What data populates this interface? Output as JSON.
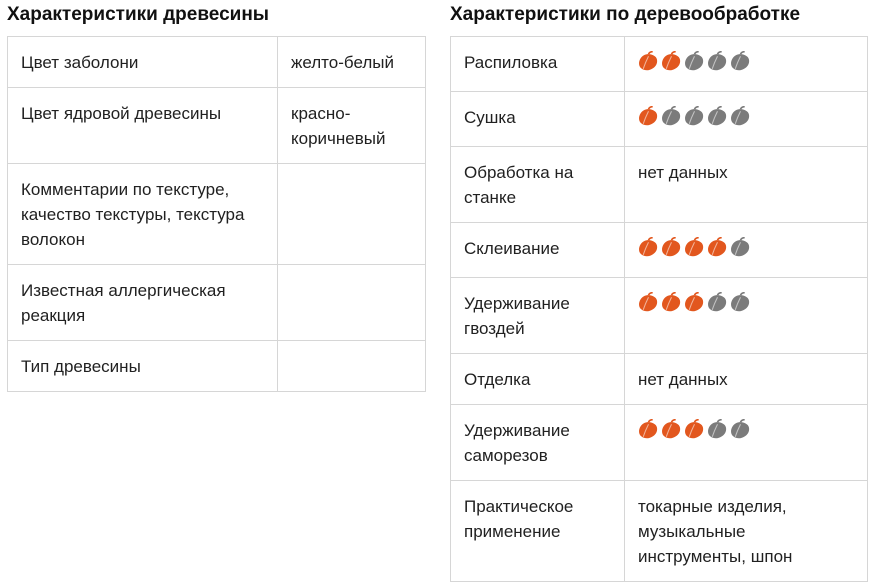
{
  "wood": {
    "title": "Характеристики древесины",
    "rows": [
      {
        "label": "Цвет заболони",
        "value": "желто-белый"
      },
      {
        "label": "Цвет ядровой древесины",
        "value": "красно-\nкоричневый"
      },
      {
        "label": "Комментарии по текстуре, качество текстуры, текстура волокон",
        "value": ""
      },
      {
        "label": "Известная аллергическая реакция",
        "value": ""
      },
      {
        "label": "Тип древесины",
        "value": ""
      }
    ]
  },
  "work": {
    "title": "Характеристики по деревообработке",
    "rows": [
      {
        "label": "Распиловка",
        "rating": 2,
        "max": 5
      },
      {
        "label": "Сушка",
        "rating": 1,
        "max": 5
      },
      {
        "label": "Обработка на станке",
        "value": "нет данных"
      },
      {
        "label": "Склеивание",
        "rating": 4,
        "max": 5
      },
      {
        "label": "Удерживание гвоздей",
        "rating": 3,
        "max": 5
      },
      {
        "label": "Отделка",
        "value": "нет данных"
      },
      {
        "label": "Удерживание саморезов",
        "rating": 3,
        "max": 5
      },
      {
        "label": "Практическое применение",
        "value": "токарные изделия, музыкальные инструменты, шпон"
      }
    ]
  },
  "colors": {
    "active_leaf": "#e2571e",
    "inactive_leaf": "#7b7b7b"
  },
  "icons": {
    "rating": "leaf-icon"
  }
}
